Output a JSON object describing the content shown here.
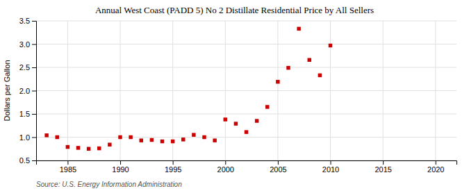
{
  "chart_data": {
    "type": "scatter",
    "title": "Annual West Coast (PADD 5) No 2 Distillate Residential Price by All Sellers",
    "ylabel": "Dollars per Gallon",
    "annotations": [
      "Source: U.S. Energy Information Administration"
    ],
    "color": "#cc0000",
    "marker": "square",
    "grid": true,
    "xlim": [
      1982,
      2022
    ],
    "ylim": [
      0.5,
      3.5
    ],
    "xticks": [
      1985,
      1990,
      1995,
      2000,
      2005,
      2010,
      2015,
      2020
    ],
    "yticks": [
      0.5,
      {
        "value": 1.0,
        "label": "1.0"
      },
      1.5,
      {
        "value": 2.0,
        "label": "2.0"
      },
      2.5,
      {
        "value": 3.0,
        "label": "3.0"
      },
      3.5
    ],
    "x": [
      1983,
      1984,
      1985,
      1986,
      1987,
      1988,
      1989,
      1990,
      1991,
      1992,
      1993,
      1994,
      1995,
      1996,
      1997,
      1998,
      1999,
      2000,
      2001,
      2002,
      2003,
      2004,
      2005,
      2006,
      2007,
      2008,
      2009,
      2010
    ],
    "values": [
      1.04,
      1.0,
      0.79,
      0.77,
      0.75,
      0.76,
      0.84,
      1.0,
      1.0,
      0.93,
      0.94,
      0.91,
      0.91,
      0.95,
      1.05,
      1.0,
      0.93,
      1.38,
      1.29,
      1.11,
      1.35,
      1.65,
      2.19,
      2.49,
      3.33,
      2.66,
      2.33,
      2.97
    ]
  }
}
